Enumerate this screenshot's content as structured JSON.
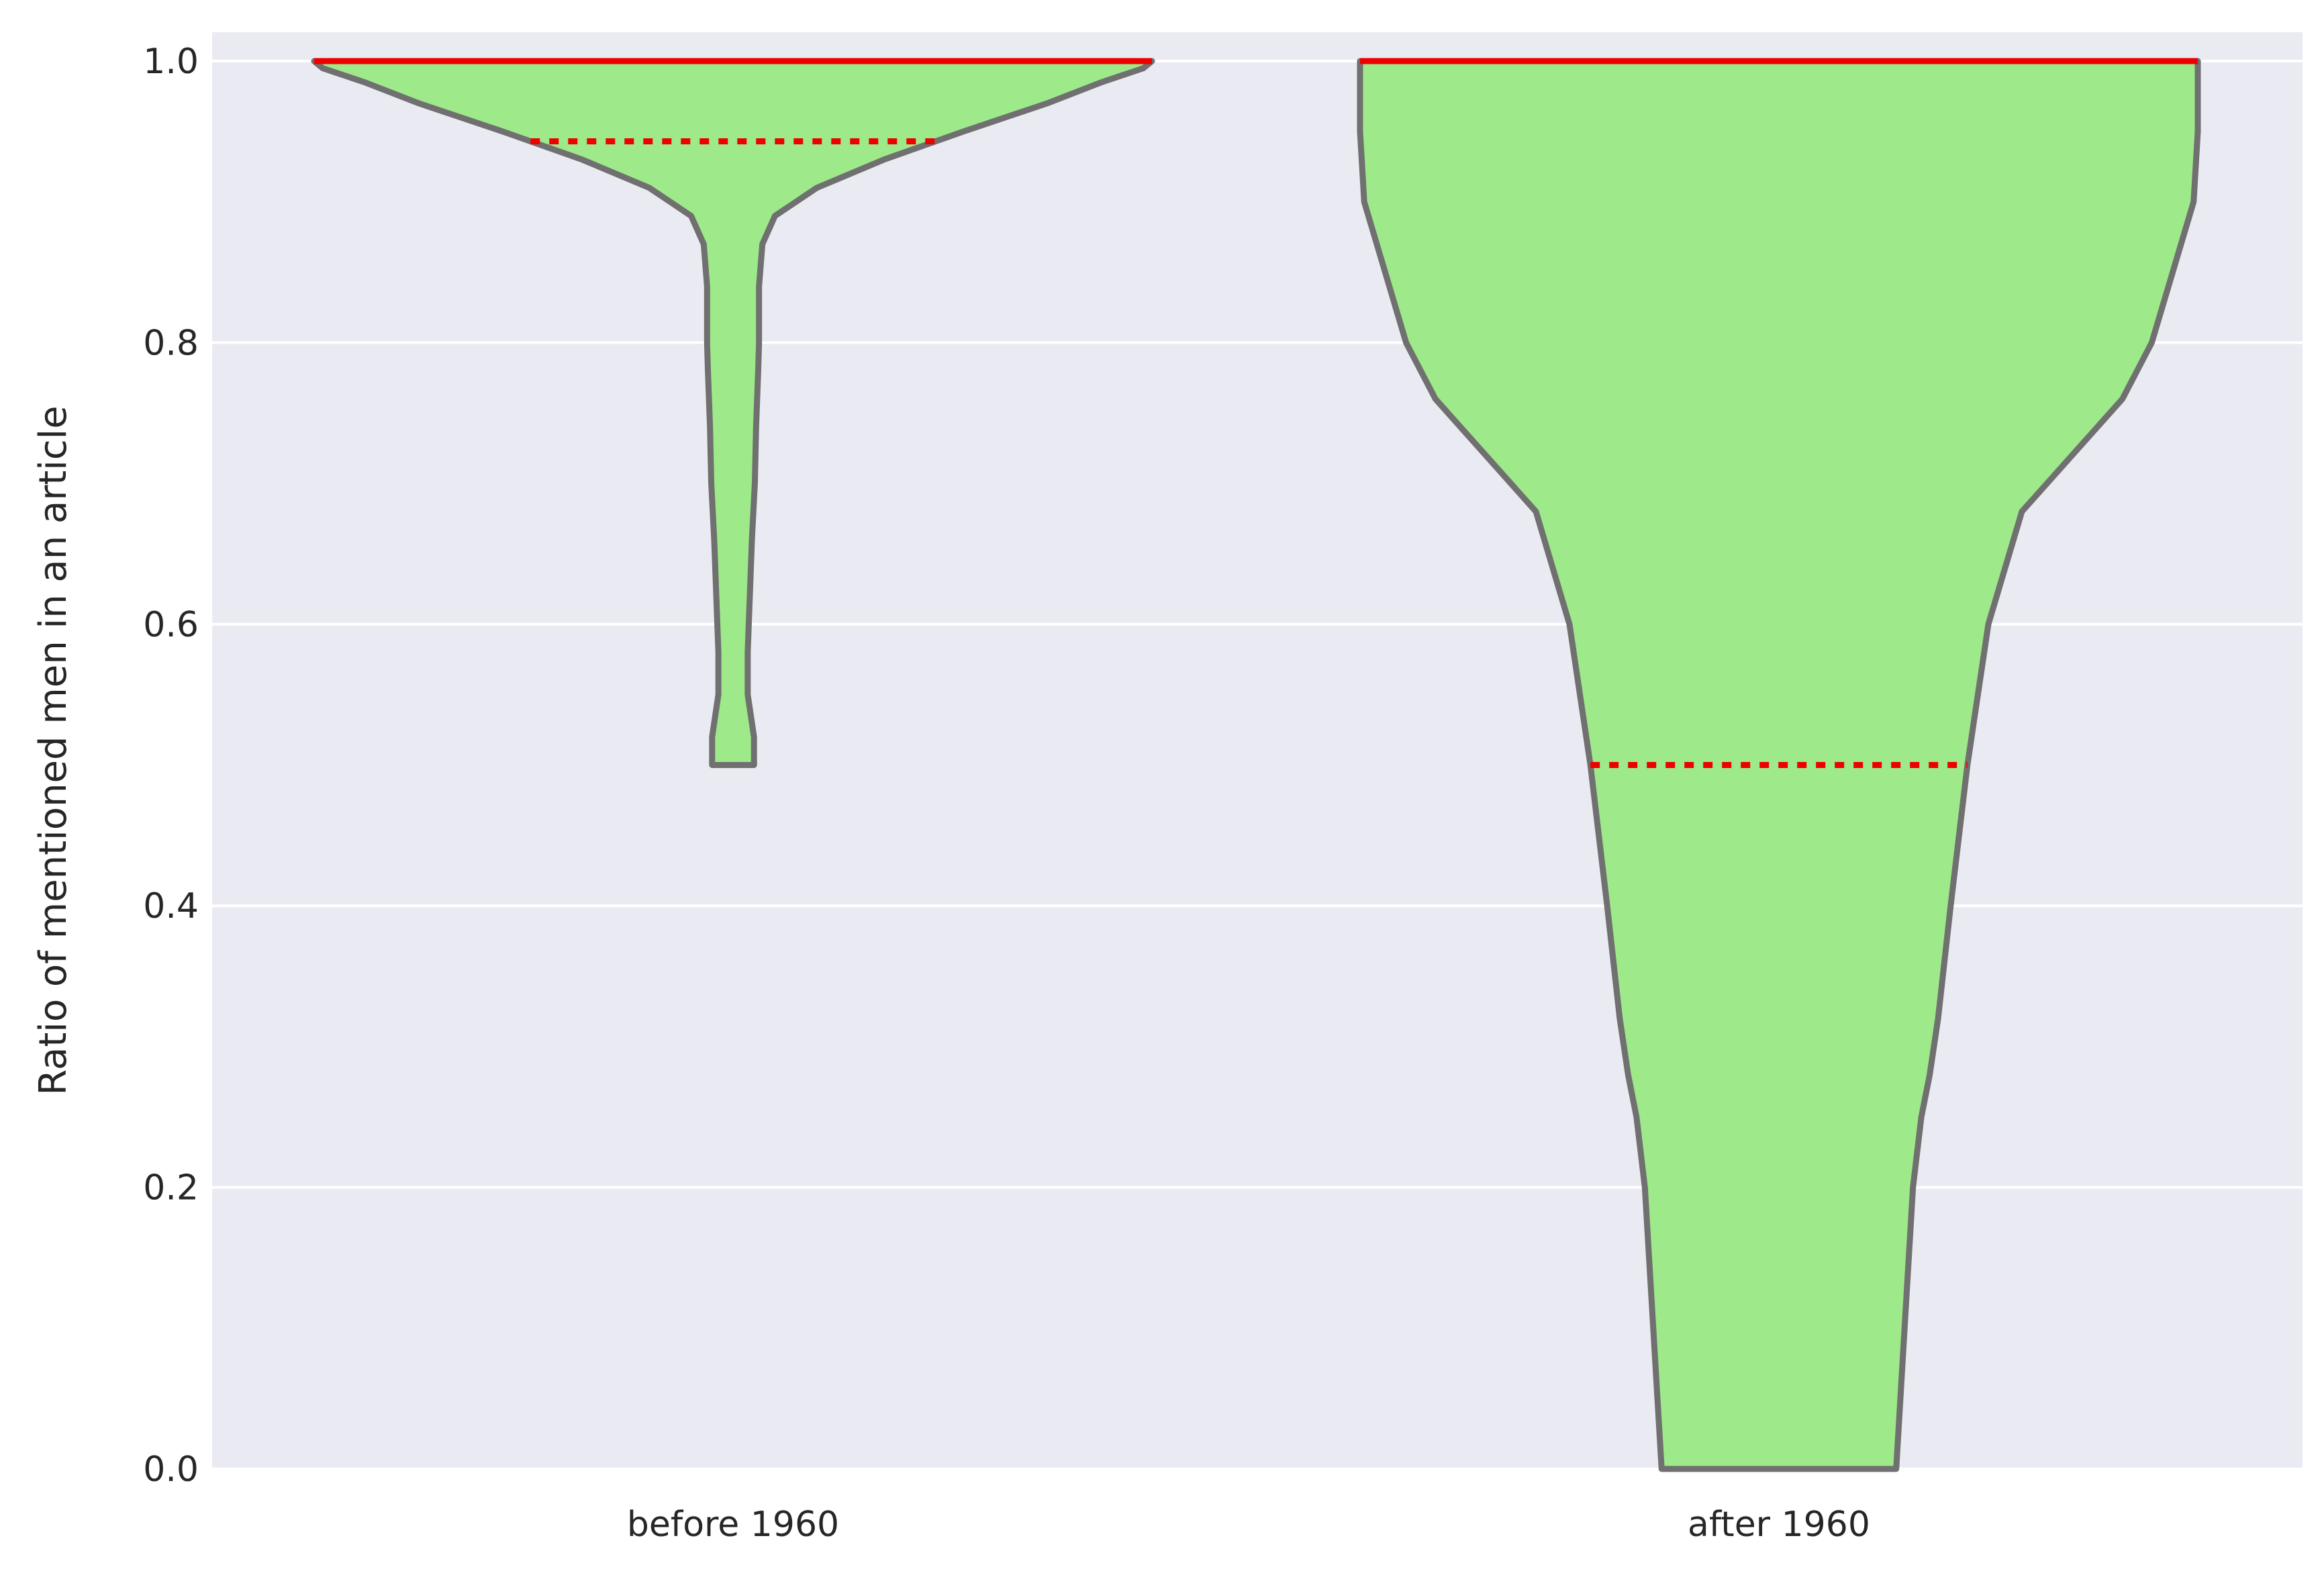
{
  "chart_data": {
    "type": "violin",
    "title": "",
    "xlabel": "",
    "ylabel": "Ratio of mentioned men in an article",
    "ylim": [
      0.0,
      1.0
    ],
    "yticks": [
      "0.0",
      "0.2",
      "0.4",
      "0.6",
      "0.8",
      "1.0"
    ],
    "grid": true,
    "categories": [
      "before 1960",
      "after 1960"
    ],
    "violins": [
      {
        "category": "before 1960",
        "median": 1.0,
        "quartile_line": 0.943,
        "max": 1.0,
        "min": 0.5,
        "density_profile": [
          [
            0.5,
            0.05
          ],
          [
            0.52,
            0.05
          ],
          [
            0.55,
            0.035
          ],
          [
            0.58,
            0.035
          ],
          [
            0.62,
            0.04
          ],
          [
            0.66,
            0.045
          ],
          [
            0.7,
            0.052
          ],
          [
            0.74,
            0.055
          ],
          [
            0.78,
            0.06
          ],
          [
            0.8,
            0.062
          ],
          [
            0.84,
            0.062
          ],
          [
            0.87,
            0.07
          ],
          [
            0.89,
            0.1
          ],
          [
            0.91,
            0.2
          ],
          [
            0.93,
            0.36
          ],
          [
            0.95,
            0.55
          ],
          [
            0.97,
            0.75
          ],
          [
            0.985,
            0.88
          ],
          [
            0.995,
            0.98
          ],
          [
            1.0,
            1.0
          ]
        ]
      },
      {
        "category": "after 1960",
        "median": 1.0,
        "quartile_line": 0.5,
        "max": 1.0,
        "min": 0.0,
        "density_profile": [
          [
            0.0,
            0.28
          ],
          [
            0.05,
            0.29
          ],
          [
            0.1,
            0.3
          ],
          [
            0.15,
            0.31
          ],
          [
            0.2,
            0.32
          ],
          [
            0.25,
            0.34
          ],
          [
            0.28,
            0.36
          ],
          [
            0.32,
            0.38
          ],
          [
            0.4,
            0.41
          ],
          [
            0.5,
            0.45
          ],
          [
            0.6,
            0.5
          ],
          [
            0.68,
            0.58
          ],
          [
            0.72,
            0.7
          ],
          [
            0.76,
            0.82
          ],
          [
            0.8,
            0.89
          ],
          [
            0.85,
            0.94
          ],
          [
            0.9,
            0.99
          ],
          [
            0.95,
            1.0
          ],
          [
            1.0,
            1.0
          ]
        ]
      }
    ],
    "colors": {
      "violin_fill": "#9ee98a",
      "violin_edge": "#707070",
      "median_line": "#ee0000",
      "quartile_line": "#ee0000",
      "plot_background": "#eaeaf2",
      "grid": "#ffffff"
    }
  }
}
